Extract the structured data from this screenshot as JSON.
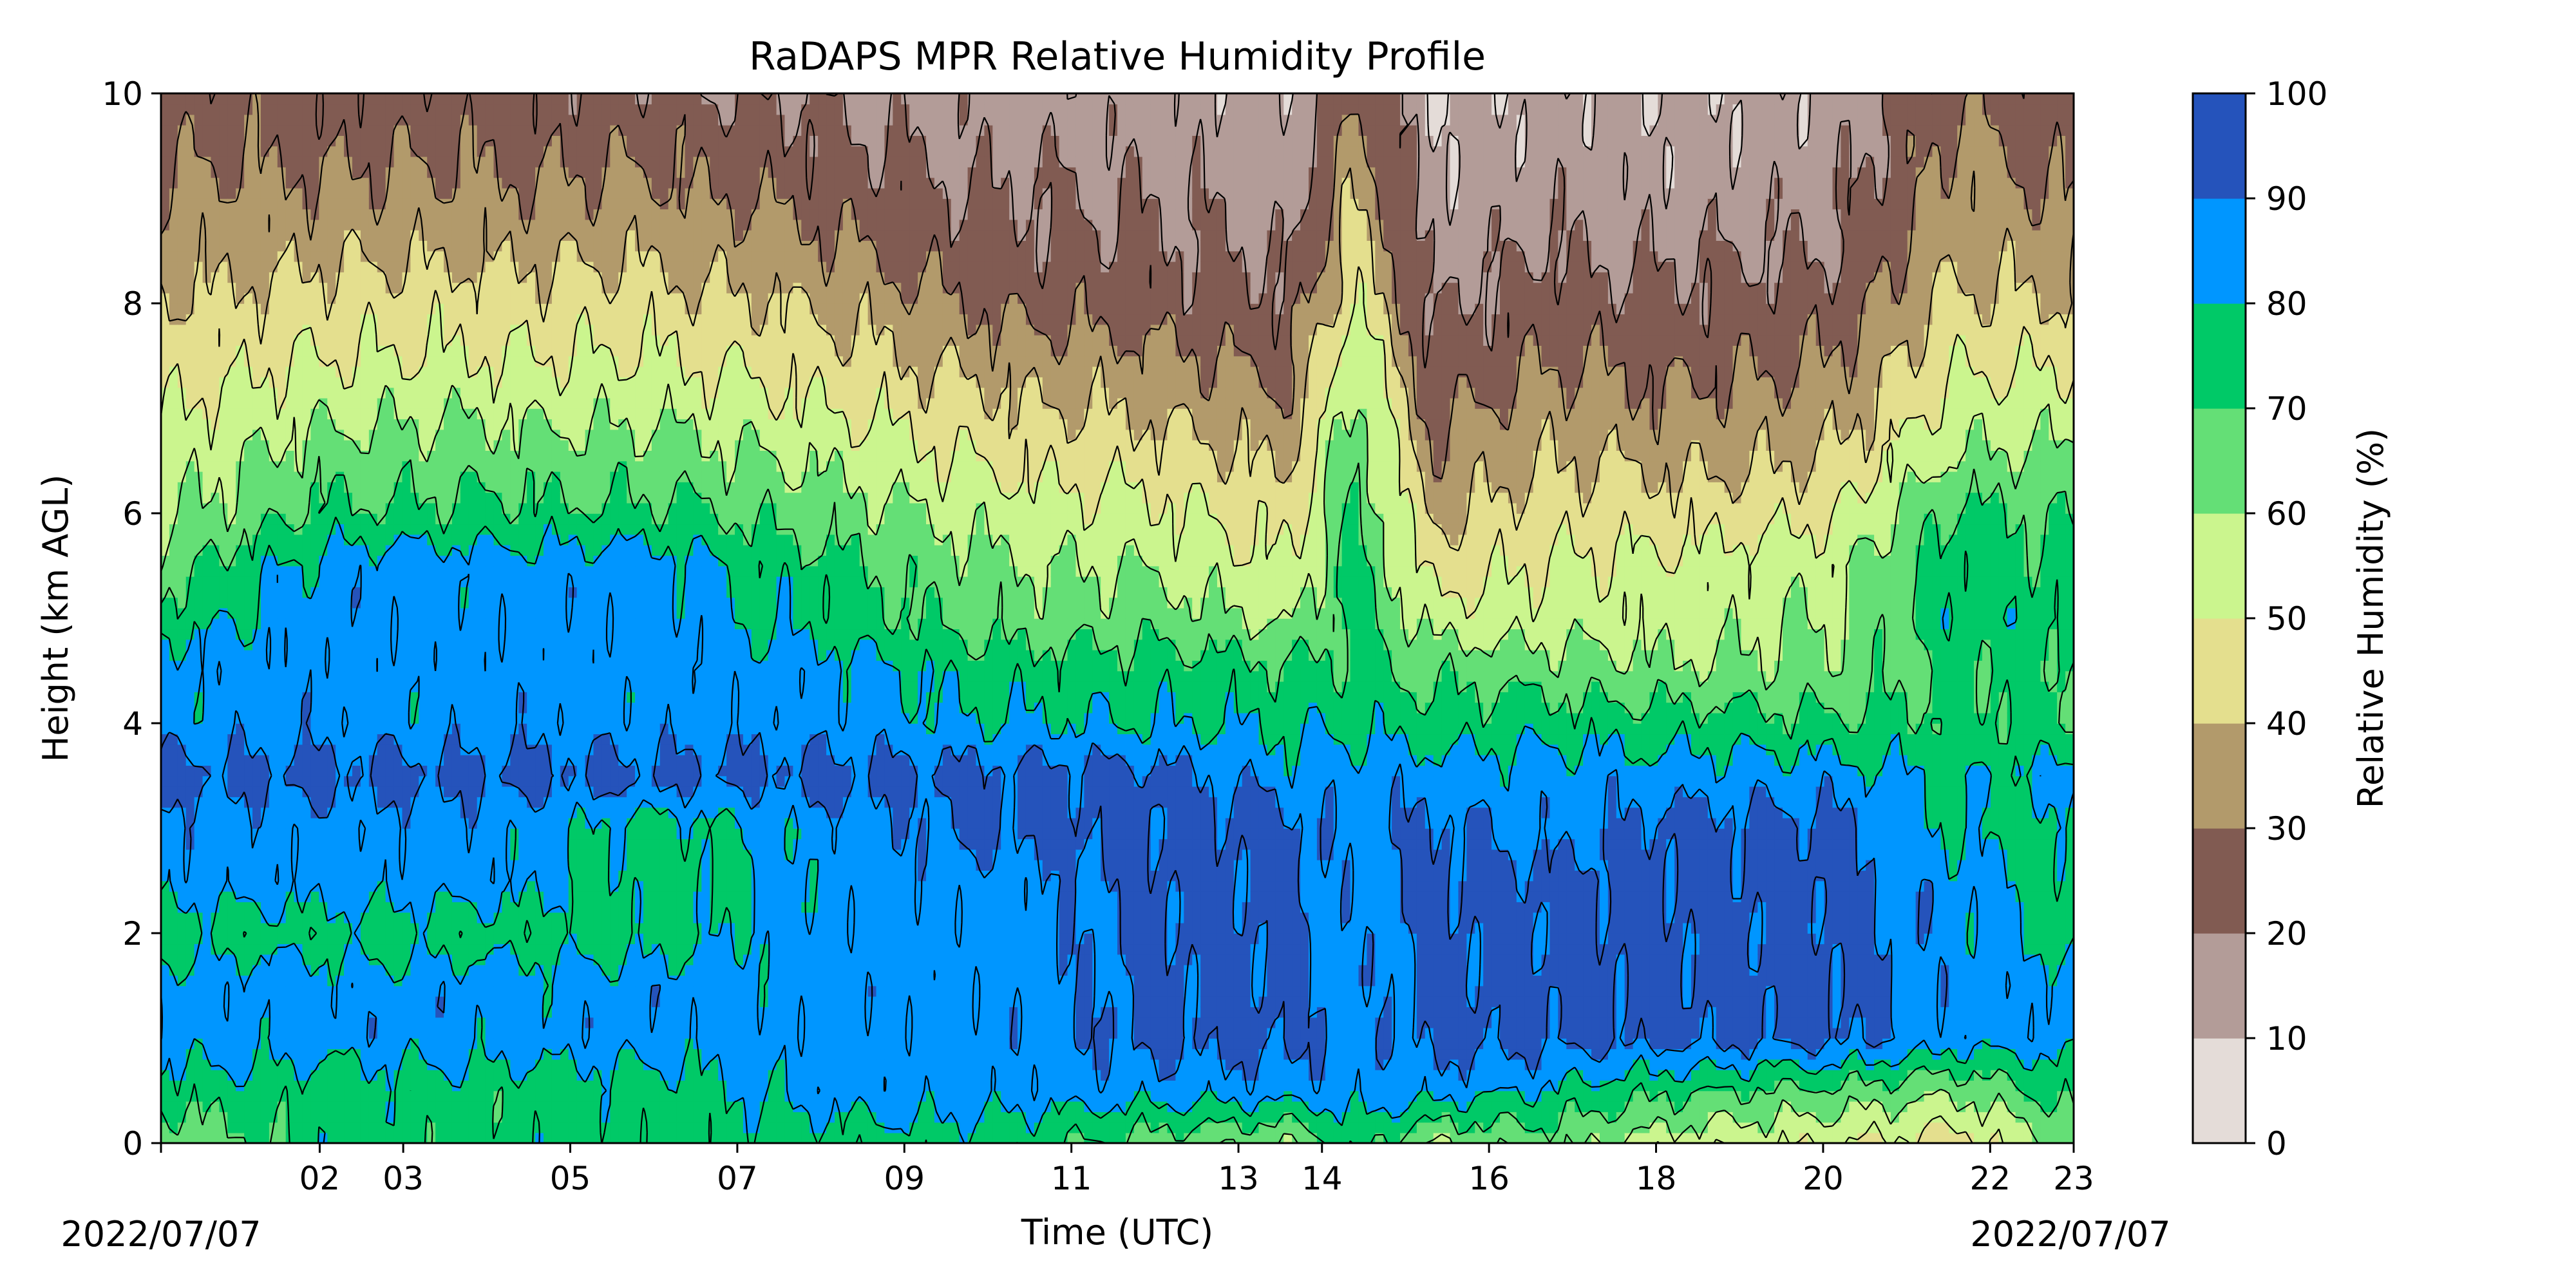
{
  "chart_data": {
    "type": "heatmap",
    "title": "RaDAPS MPR Relative Humidity Profile",
    "xlabel": "Time (UTC)",
    "ylabel": "Height (km AGL)",
    "date_left": "2022/07/07",
    "date_right": "2022/07/07",
    "x_ticks": [
      "02",
      "03",
      "05",
      "07",
      "09",
      "11",
      "13",
      "14",
      "16",
      "18",
      "20",
      "22",
      "23"
    ],
    "x_tick_positions": [
      1.9,
      2.9,
      4.9,
      6.9,
      8.9,
      10.9,
      12.9,
      13.9,
      15.9,
      17.9,
      19.9,
      21.9,
      22.9
    ],
    "xlim": [
      0.0,
      22.9
    ],
    "ylim": [
      0,
      10
    ],
    "y_ticks": [
      0,
      2,
      4,
      6,
      8,
      10
    ],
    "colorbar": {
      "label": "Relative Humidity (%)",
      "levels": [
        0,
        10,
        20,
        30,
        40,
        50,
        60,
        70,
        80,
        90,
        100
      ],
      "colors": [
        "#e4dcd8",
        "#b39c98",
        "#815b52",
        "#b29a6b",
        "#e4df8e",
        "#cbf58e",
        "#64df76",
        "#00c967",
        "#0096ff",
        "#2553bb"
      ]
    },
    "profile_height_km": [
      0.0,
      0.5,
      1.0,
      1.5,
      2.0,
      2.5,
      3.0,
      3.5,
      4.0,
      4.5,
      5.0,
      5.5,
      6.0,
      6.5,
      7.0,
      7.5,
      8.0,
      8.5,
      9.0,
      9.5,
      10.0
    ],
    "profiles_time_hour": [
      0.0,
      2.0,
      4.0,
      6.0,
      8.0,
      10.0,
      12.0,
      13.5,
      14.3,
      15.2,
      16.5,
      18.0,
      20.0,
      21.5,
      22.9
    ],
    "rh_percent": [
      [
        62,
        75,
        85,
        85,
        75,
        85,
        85,
        93,
        85,
        85,
        75,
        65,
        58,
        55,
        50,
        45,
        40,
        35,
        32,
        28,
        25
      ],
      [
        75,
        75,
        85,
        85,
        75,
        85,
        85,
        93,
        85,
        85,
        85,
        85,
        72,
        65,
        58,
        50,
        45,
        38,
        33,
        28,
        25
      ],
      [
        75,
        75,
        85,
        85,
        75,
        85,
        85,
        93,
        85,
        85,
        85,
        85,
        72,
        65,
        58,
        50,
        45,
        38,
        32,
        28,
        24
      ],
      [
        75,
        75,
        85,
        85,
        75,
        75,
        75,
        93,
        85,
        85,
        85,
        85,
        72,
        65,
        57,
        50,
        44,
        38,
        32,
        27,
        23
      ],
      [
        75,
        85,
        85,
        85,
        85,
        85,
        85,
        93,
        85,
        85,
        75,
        72,
        65,
        58,
        50,
        44,
        38,
        32,
        26,
        22,
        18
      ],
      [
        75,
        85,
        85,
        85,
        85,
        85,
        93,
        93,
        80,
        75,
        65,
        62,
        55,
        48,
        42,
        35,
        28,
        23,
        20,
        17,
        15
      ],
      [
        65,
        85,
        93,
        93,
        93,
        93,
        93,
        93,
        80,
        75,
        65,
        58,
        52,
        45,
        38,
        32,
        25,
        22,
        20,
        17,
        15
      ],
      [
        60,
        85,
        93,
        93,
        93,
        93,
        93,
        85,
        78,
        72,
        58,
        50,
        45,
        38,
        32,
        26,
        22,
        18,
        15,
        13,
        12
      ],
      [
        75,
        85,
        85,
        85,
        85,
        85,
        85,
        85,
        78,
        72,
        75,
        75,
        72,
        70,
        65,
        60,
        50,
        45,
        40,
        35,
        30
      ],
      [
        60,
        85,
        93,
        93,
        93,
        93,
        93,
        85,
        75,
        68,
        55,
        45,
        38,
        32,
        27,
        22,
        18,
        15,
        13,
        12,
        11
      ],
      [
        65,
        80,
        93,
        93,
        93,
        93,
        85,
        85,
        75,
        65,
        55,
        50,
        45,
        40,
        35,
        30,
        25,
        20,
        17,
        15,
        13
      ],
      [
        55,
        72,
        93,
        93,
        93,
        93,
        93,
        85,
        75,
        62,
        55,
        52,
        45,
        38,
        32,
        27,
        22,
        18,
        15,
        13,
        12
      ],
      [
        50,
        68,
        93,
        93,
        93,
        93,
        93,
        85,
        72,
        62,
        60,
        58,
        48,
        40,
        35,
        30,
        25,
        20,
        17,
        15,
        13
      ],
      [
        45,
        62,
        85,
        85,
        85,
        85,
        78,
        78,
        72,
        72,
        78,
        75,
        72,
        62,
        55,
        48,
        42,
        38,
        35,
        32,
        28
      ],
      [
        62,
        75,
        85,
        85,
        75,
        75,
        75,
        85,
        72,
        72,
        75,
        72,
        68,
        62,
        55,
        48,
        40,
        35,
        30,
        25,
        22
      ]
    ]
  }
}
